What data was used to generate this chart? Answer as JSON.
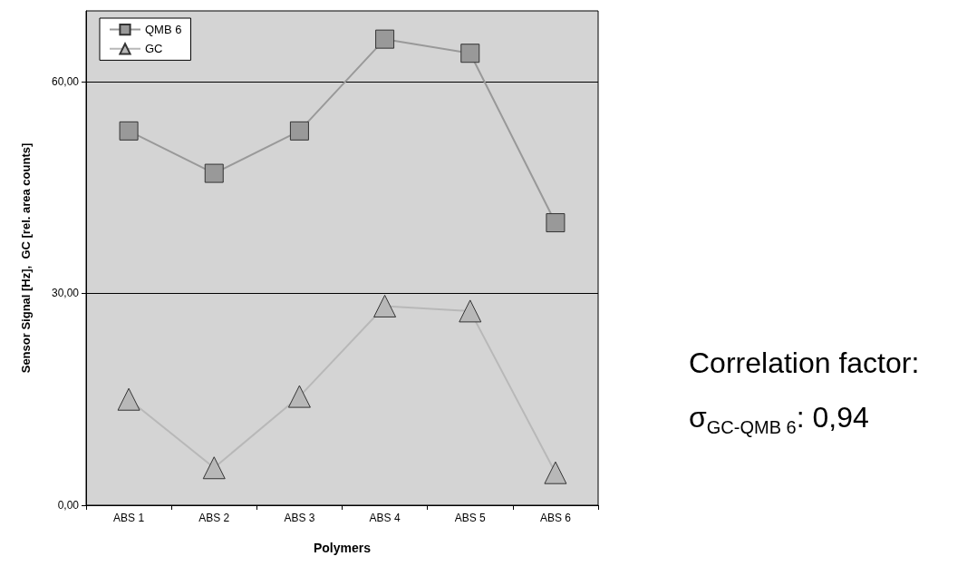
{
  "chart_data": {
    "type": "line",
    "xlabel": "Polymers",
    "ylabel": "Sensor Signal [Hz],  GC [rel. area counts]",
    "categories": [
      "ABS 1",
      "ABS 2",
      "ABS 3",
      "ABS 4",
      "ABS 5",
      "ABS 6"
    ],
    "series": [
      {
        "name": "QMB 6",
        "color": "#999999",
        "marker": "square",
        "values": [
          53,
          47,
          53,
          66,
          64,
          40
        ]
      },
      {
        "name": "GC",
        "color": "#b8b8b8",
        "marker": "triangle",
        "values": [
          15,
          5.3,
          15.4,
          28.2,
          27.5,
          4.6
        ]
      }
    ],
    "ylim": [
      0,
      70
    ],
    "yticks": [
      {
        "value": 0,
        "label": "0,00"
      },
      {
        "value": 30,
        "label": "30,00"
      },
      {
        "value": 60,
        "label": "60,00"
      }
    ],
    "grid": "y",
    "legend": "top left",
    "annotations": [
      "Correlation factor:",
      "σ$_{GC-QMB 6}$: 0,94"
    ]
  }
}
